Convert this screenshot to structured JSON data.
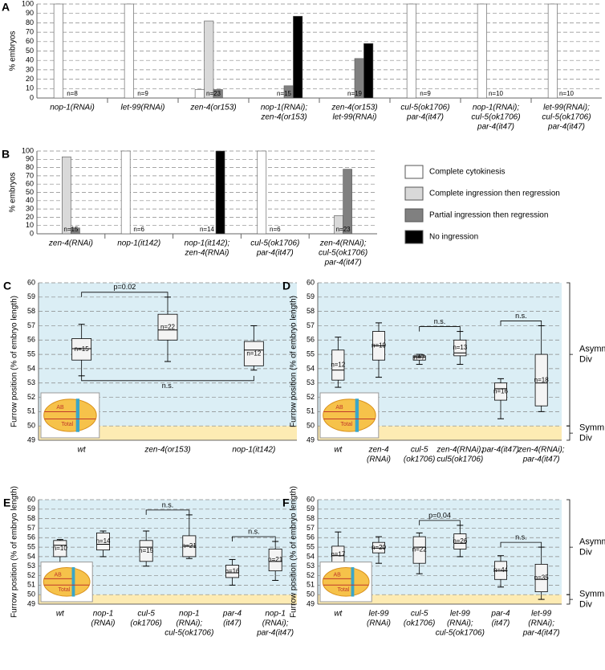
{
  "chart_data": [
    {
      "type": "bar",
      "panel": "A",
      "y_label": "% embryos",
      "ylim": [
        0,
        100
      ],
      "yticks": [
        0,
        10,
        20,
        30,
        40,
        50,
        60,
        70,
        80,
        90,
        100
      ],
      "grid": true,
      "categories": [
        [
          "nop-1(RNAi)"
        ],
        [
          "let-99(RNAi)"
        ],
        [
          "zen-4(or153)"
        ],
        [
          "nop-1(RNAi);",
          "zen-4(or153)"
        ],
        [
          "zen-4(or153)",
          "let-99(RNAi)"
        ],
        [
          "cul-5(ok1706)",
          "par-4(it47)"
        ],
        [
          "nop-1(RNAi);",
          "cul-5(ok1706)",
          "par-4(it47)"
        ],
        [
          "let-99(RNAi);",
          "cul-5(ok1706)",
          "par-4(it47)"
        ]
      ],
      "n_labels": [
        "n=8",
        "n=9",
        "n=23",
        "n=15",
        "n=19",
        "n=9",
        "n=10",
        "n=10"
      ],
      "series": [
        {
          "color": "#ffffff",
          "values": [
            100,
            100,
            9,
            0,
            0,
            100,
            100,
            100
          ]
        },
        {
          "color": "#d9d9d9",
          "values": [
            0,
            0,
            82,
            0,
            0,
            0,
            0,
            0
          ]
        },
        {
          "color": "#808080",
          "values": [
            0,
            0,
            9,
            13,
            42,
            0,
            0,
            0
          ]
        },
        {
          "color": "#000000",
          "values": [
            0,
            0,
            0,
            87,
            58,
            0,
            0,
            0
          ]
        }
      ]
    },
    {
      "type": "bar",
      "panel": "B",
      "y_label": "% embryos",
      "ylim": [
        0,
        100
      ],
      "yticks": [
        0,
        10,
        20,
        30,
        40,
        50,
        60,
        70,
        80,
        90,
        100
      ],
      "grid": true,
      "legend": "right",
      "categories": [
        [
          "zen-4(RNAi)"
        ],
        [
          "nop-1(it142)"
        ],
        [
          "nop-1(it142);",
          "zen-4(RNAi)"
        ],
        [
          "cul-5(ok1706)",
          "par-4(it47)"
        ],
        [
          "zen-4(RNAi);",
          "cul-5(ok1706)",
          "par-4(it47)"
        ]
      ],
      "n_labels": [
        "n=15",
        "n=6",
        "n=14",
        "n=6",
        "n=23"
      ],
      "series": [
        {
          "name": "Complete cytokinesis",
          "color": "#ffffff",
          "values": [
            0,
            100,
            0,
            100,
            0
          ]
        },
        {
          "name": "Complete ingression then regression",
          "color": "#d9d9d9",
          "values": [
            93,
            0,
            0,
            0,
            22
          ]
        },
        {
          "name": "Partial ingression then regression",
          "color": "#808080",
          "values": [
            7,
            0,
            0,
            0,
            78
          ]
        },
        {
          "name": "No ingression",
          "color": "#000000",
          "values": [
            0,
            0,
            100,
            0,
            0
          ]
        }
      ]
    },
    {
      "type": "box",
      "panel": "C",
      "y_label": "Furrow position (% of embryo length)",
      "ylim": [
        49,
        60
      ],
      "yticks": [
        49,
        50,
        51,
        52,
        53,
        54,
        55,
        56,
        57,
        58,
        59,
        60
      ],
      "grid": true,
      "inset_labels": [
        "AB",
        "Total"
      ],
      "bands": [
        {
          "from": 49,
          "to": 50,
          "color": "#fdebb3"
        },
        {
          "from": 50,
          "to": 60,
          "color": "#dbeef5"
        }
      ],
      "categories": [
        [
          "wt"
        ],
        [
          "zen-4(or153)"
        ],
        [
          "nop-1(it142)"
        ]
      ],
      "boxes": [
        {
          "min": 53.5,
          "q1": 54.6,
          "median": 55.4,
          "q3": 56.1,
          "max": 57.1,
          "n": "n=15"
        },
        {
          "min": 54.5,
          "q1": 56.0,
          "median": 56.7,
          "q3": 57.8,
          "max": 59.0,
          "n": "n=22"
        },
        {
          "min": 53.9,
          "q1": 54.2,
          "median": 55.3,
          "q3": 55.9,
          "max": 57.0,
          "n": "n=12"
        }
      ],
      "comparisons": [
        {
          "between": [
            0,
            1
          ],
          "label": "p=0.02",
          "side": "above"
        },
        {
          "between": [
            0,
            2
          ],
          "label": "n.s.",
          "side": "below"
        }
      ]
    },
    {
      "type": "box",
      "panel": "D",
      "y_label": "Furrow position (% of embryo length)",
      "ylim": [
        49,
        60
      ],
      "yticks": [
        49,
        50,
        51,
        52,
        53,
        54,
        55,
        56,
        57,
        58,
        59,
        60
      ],
      "grid": true,
      "inset_labels": [
        "AB",
        "Total"
      ],
      "bands": [
        {
          "from": 49,
          "to": 50,
          "color": "#fdebb3",
          "label": [
            "Symm",
            "Div"
          ]
        },
        {
          "from": 50,
          "to": 60,
          "color": "#dbeef5",
          "label": [
            "Asymm",
            "Div"
          ]
        }
      ],
      "categories": [
        [
          "wt"
        ],
        [
          "zen-4",
          "(RNAi)"
        ],
        [
          "cul-5",
          "(ok1706)"
        ],
        [
          "zen-4(RNAi);",
          "cul5(ok1706)"
        ],
        [
          "par-4(it47)"
        ],
        [
          "zen-4(RNAi);",
          "par-4(it47)"
        ]
      ],
      "boxes": [
        {
          "min": 52.7,
          "q1": 53.2,
          "median": 53.9,
          "q3": 55.3,
          "max": 56.2,
          "n": "n=12"
        },
        {
          "min": 53.4,
          "q1": 54.6,
          "median": 55.6,
          "q3": 56.6,
          "max": 57.2,
          "n": "n=19"
        },
        {
          "min": 54.3,
          "q1": 54.6,
          "median": 54.8,
          "q3": 54.9,
          "max": 55.0,
          "n": "n=7"
        },
        {
          "min": 54.3,
          "q1": 54.9,
          "median": 55.1,
          "q3": 56.0,
          "max": 56.6,
          "n": "n=13"
        },
        {
          "min": 50.5,
          "q1": 51.8,
          "median": 52.6,
          "q3": 53.0,
          "max": 53.3,
          "n": "n=16"
        },
        {
          "min": 51.0,
          "q1": 51.4,
          "median": 53.0,
          "q3": 55.0,
          "max": 57.0,
          "n": "n=18"
        }
      ],
      "comparisons": [
        {
          "between": [
            2,
            3
          ],
          "label": "n.s.",
          "side": "above"
        },
        {
          "between": [
            4,
            5
          ],
          "label": "n.s.",
          "side": "above"
        }
      ]
    },
    {
      "type": "box",
      "panel": "E",
      "y_label": "Furrow position (% of embryo length)",
      "ylim": [
        49,
        60
      ],
      "yticks": [
        49,
        50,
        51,
        52,
        53,
        54,
        55,
        56,
        57,
        58,
        59,
        60
      ],
      "grid": true,
      "inset_labels": [
        "AB",
        "Total"
      ],
      "bands": [
        {
          "from": 49,
          "to": 50,
          "color": "#fdebb3"
        },
        {
          "from": 50,
          "to": 60,
          "color": "#dbeef5"
        }
      ],
      "categories": [
        [
          "wt"
        ],
        [
          "nop-1",
          "(RNAi)"
        ],
        [
          "cul-5",
          "(ok1706)"
        ],
        [
          "nop-1",
          "(RNAi);",
          "cul-5(ok1706)"
        ],
        [
          "par-4",
          "(it47)"
        ],
        [
          "nop-1",
          "(RNAi);",
          "par-4(it47)"
        ]
      ],
      "boxes": [
        {
          "min": 53.4,
          "q1": 54.0,
          "median": 55.2,
          "q3": 55.7,
          "max": 55.8,
          "n": "n=10"
        },
        {
          "min": 54.0,
          "q1": 54.7,
          "median": 55.3,
          "q3": 56.5,
          "max": 56.7,
          "n": "n=14"
        },
        {
          "min": 53.0,
          "q1": 53.5,
          "median": 55.0,
          "q3": 55.7,
          "max": 56.7,
          "n": "n=15"
        },
        {
          "min": 53.8,
          "q1": 54.0,
          "median": 55.1,
          "q3": 56.2,
          "max": 58.4,
          "n": "n=21"
        },
        {
          "min": 51.0,
          "q1": 51.8,
          "median": 52.3,
          "q3": 53.1,
          "max": 53.7,
          "n": "n=16"
        },
        {
          "min": 51.5,
          "q1": 52.5,
          "median": 53.5,
          "q3": 54.8,
          "max": 55.6,
          "n": "n=21"
        }
      ],
      "comparisons": [
        {
          "between": [
            2,
            3
          ],
          "label": "n.s.",
          "side": "above"
        },
        {
          "between": [
            4,
            5
          ],
          "label": "n.s.",
          "side": "above"
        }
      ]
    },
    {
      "type": "box",
      "panel": "F",
      "y_label": "Furrow position (% of embryo length)",
      "ylim": [
        49,
        60
      ],
      "yticks": [
        49,
        50,
        51,
        52,
        53,
        54,
        55,
        56,
        57,
        58,
        59,
        60
      ],
      "grid": true,
      "inset_labels": [
        "AB",
        "Total"
      ],
      "bands": [
        {
          "from": 49,
          "to": 50,
          "color": "#fdebb3",
          "label": [
            "Symm",
            "Div"
          ]
        },
        {
          "from": 50,
          "to": 60,
          "color": "#dbeef5",
          "label": [
            "Asymm",
            "Div"
          ]
        }
      ],
      "categories": [
        [
          "wt"
        ],
        [
          "let-99",
          "(RNAi)"
        ],
        [
          "cul-5",
          "(ok1706)"
        ],
        [
          "let-99",
          "(RNAi);",
          "cul-5(ok1706)"
        ],
        [
          "par-4",
          "(it47)"
        ],
        [
          "let-99",
          "(RNAi);",
          "par-4(it47)"
        ]
      ],
      "boxes": [
        {
          "min": 52.5,
          "q1": 53.3,
          "median": 54.1,
          "q3": 55.1,
          "max": 56.6,
          "n": "n=17"
        },
        {
          "min": 53.3,
          "q1": 54.4,
          "median": 54.9,
          "q3": 55.5,
          "max": 56.1,
          "n": "n=20"
        },
        {
          "min": 52.2,
          "q1": 53.3,
          "median": 55.0,
          "q3": 56.1,
          "max": 56.5,
          "n": "n=22"
        },
        {
          "min": 54.0,
          "q1": 54.8,
          "median": 55.4,
          "q3": 56.4,
          "max": 57.3,
          "n": "n=26"
        },
        {
          "min": 50.8,
          "q1": 51.6,
          "median": 52.5,
          "q3": 53.5,
          "max": 54.1,
          "n": "n=44"
        },
        {
          "min": 49.5,
          "q1": 50.3,
          "median": 51.6,
          "q3": 53.2,
          "max": 55.0,
          "n": "n=35"
        }
      ],
      "comparisons": [
        {
          "between": [
            2,
            3
          ],
          "label": "p=0.04",
          "side": "above"
        },
        {
          "between": [
            4,
            5
          ],
          "label": "n.s.",
          "side": "above"
        }
      ]
    }
  ]
}
